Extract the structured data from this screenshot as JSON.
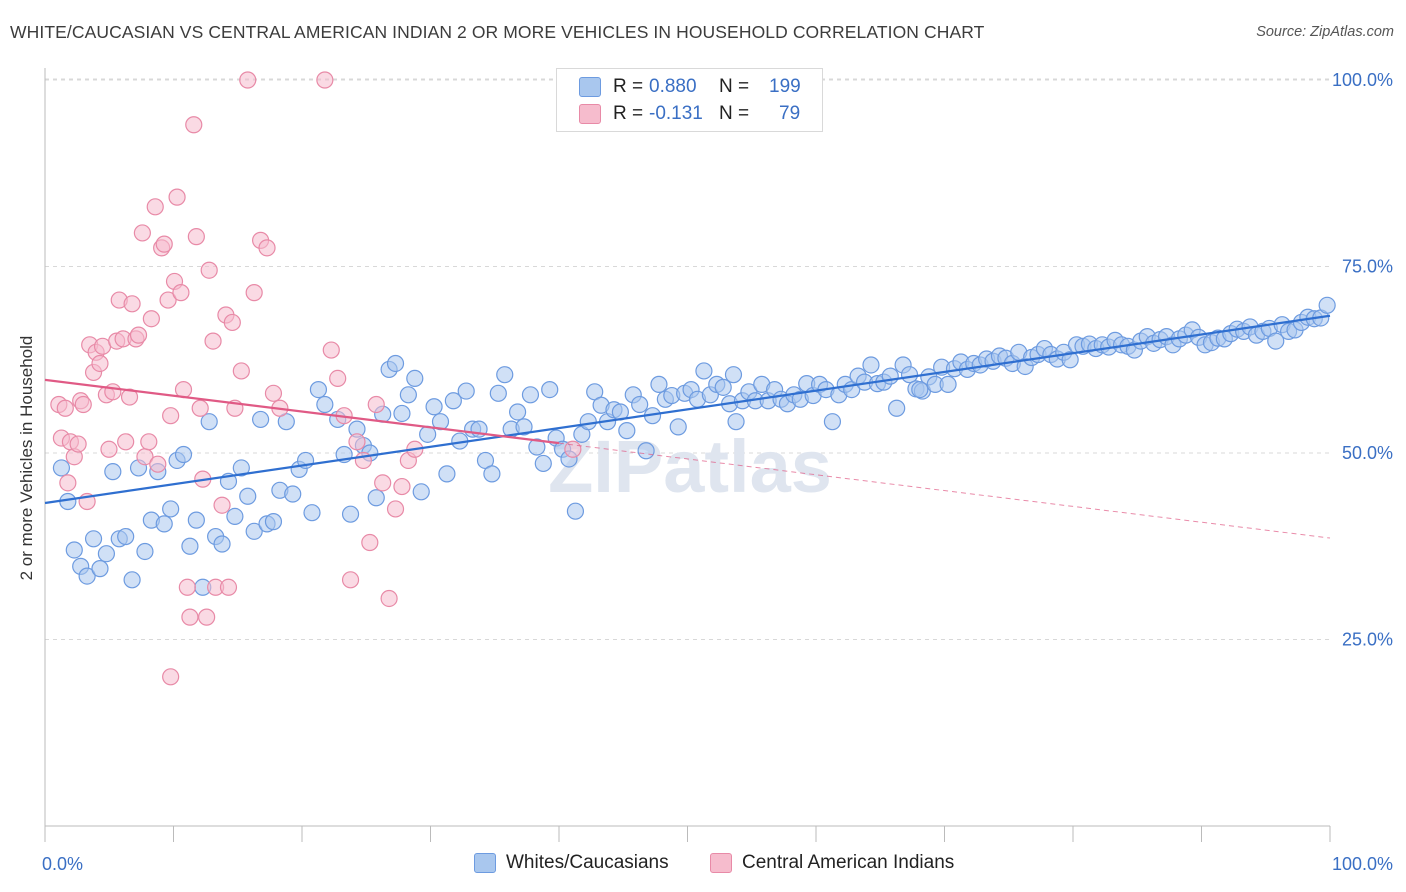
{
  "header": {
    "title": "WHITE/CAUCASIAN VS CENTRAL AMERICAN INDIAN 2 OR MORE VEHICLES IN HOUSEHOLD CORRELATION CHART",
    "source": "Source: ZipAtlas.com"
  },
  "watermark": "ZIPatlas",
  "stats": {
    "rows": [
      {
        "r_label": "R =",
        "r_value": "0.880",
        "n_label": "N =",
        "n_value": "199",
        "color": "#a9c7ee",
        "border": "#6d9be0"
      },
      {
        "r_label": "R =",
        "r_value": "-0.131",
        "n_label": "N =",
        "n_value": "79",
        "color": "#f6bccd",
        "border": "#e88aa7"
      }
    ]
  },
  "legend": {
    "items": [
      {
        "label": "Whites/Caucasians",
        "color": "#a9c7ee",
        "border": "#6d9be0"
      },
      {
        "label": "Central American Indians",
        "color": "#f6bccd",
        "border": "#e88aa7"
      }
    ]
  },
  "chart_data": {
    "type": "scatter",
    "title": "WHITE/CAUCASIAN VS CENTRAL AMERICAN INDIAN 2 OR MORE VEHICLES IN HOUSEHOLD CORRELATION CHART",
    "xlabel": "",
    "ylabel": "2 or more Vehicles in Household",
    "xlim": [
      0,
      100
    ],
    "ylim": [
      0,
      102
    ],
    "x_tick_labels": [
      "0.0%",
      "100.0%"
    ],
    "y_ticks": [
      25,
      50,
      75,
      100
    ],
    "y_tick_labels": [
      "25.0%",
      "50.0%",
      "75.0%",
      "100.0%"
    ],
    "grid": true,
    "legend_position": "bottom",
    "series": [
      {
        "name": "Whites/Caucasians",
        "color": "#6d9be0",
        "fill": "#a9c7ee",
        "trend": {
          "x": [
            0,
            100
          ],
          "y": [
            43.3,
            68.4
          ],
          "color": "#2f6fd0"
        },
        "points": [
          [
            0.5,
            48
          ],
          [
            1,
            43.5
          ],
          [
            1.5,
            37
          ],
          [
            2,
            34.8
          ],
          [
            2.5,
            33.5
          ],
          [
            3,
            38.5
          ],
          [
            3.5,
            34.5
          ],
          [
            4,
            36.5
          ],
          [
            4.5,
            47.5
          ],
          [
            5,
            38.5
          ],
          [
            5.5,
            38.8
          ],
          [
            6,
            33
          ],
          [
            6.5,
            48
          ],
          [
            7,
            36.8
          ],
          [
            7.5,
            41
          ],
          [
            8,
            47.5
          ],
          [
            8.5,
            40.5
          ],
          [
            9,
            42.5
          ],
          [
            9.5,
            49
          ],
          [
            10,
            49.8
          ],
          [
            10.5,
            37.5
          ],
          [
            11,
            41
          ],
          [
            11.5,
            32
          ],
          [
            12,
            54.2
          ],
          [
            12.5,
            38.8
          ],
          [
            13,
            37.8
          ],
          [
            13.5,
            46.2
          ],
          [
            14,
            41.5
          ],
          [
            14.5,
            48
          ],
          [
            15,
            44.2
          ],
          [
            15.5,
            39.5
          ],
          [
            16,
            54.5
          ],
          [
            16.5,
            40.5
          ],
          [
            17,
            40.8
          ],
          [
            17.5,
            45
          ],
          [
            18,
            54.2
          ],
          [
            18.5,
            44.5
          ],
          [
            19,
            47.8
          ],
          [
            19.5,
            49
          ],
          [
            20,
            42
          ],
          [
            20.5,
            58.5
          ],
          [
            21,
            56.5
          ],
          [
            22,
            54.5
          ],
          [
            22.5,
            49.8
          ],
          [
            23,
            41.8
          ],
          [
            23.5,
            53.2
          ],
          [
            24,
            51
          ],
          [
            24.5,
            50
          ],
          [
            25,
            44
          ],
          [
            25.5,
            55.2
          ],
          [
            26,
            61.2
          ],
          [
            26.5,
            62
          ],
          [
            27,
            55.3
          ],
          [
            27.5,
            57.8
          ],
          [
            28,
            60
          ],
          [
            28.5,
            44.8
          ],
          [
            29,
            52.5
          ],
          [
            29.5,
            56.2
          ],
          [
            30,
            54.2
          ],
          [
            30.5,
            47.2
          ],
          [
            31,
            57
          ],
          [
            31.5,
            51.6
          ],
          [
            32,
            58.3
          ],
          [
            32.5,
            53.2
          ],
          [
            33,
            53.2
          ],
          [
            33.5,
            49
          ],
          [
            34,
            47.2
          ],
          [
            34.5,
            58
          ],
          [
            35,
            60.5
          ],
          [
            35.5,
            53.2
          ],
          [
            36,
            55.5
          ],
          [
            36.5,
            53.5
          ],
          [
            37,
            57.8
          ],
          [
            37.5,
            50.8
          ],
          [
            38,
            48.6
          ],
          [
            38.5,
            58.5
          ],
          [
            39,
            52
          ],
          [
            39.5,
            50.5
          ],
          [
            40,
            49.2
          ],
          [
            40.5,
            42.2
          ],
          [
            41,
            52.5
          ],
          [
            41.5,
            54.2
          ],
          [
            42,
            58.2
          ],
          [
            42.5,
            56.4
          ],
          [
            43,
            54.2
          ],
          [
            43.5,
            55.8
          ],
          [
            44,
            55.5
          ],
          [
            44.5,
            53
          ],
          [
            45,
            57.8
          ],
          [
            45.5,
            56.5
          ],
          [
            46,
            50.3
          ],
          [
            46.5,
            55
          ],
          [
            47,
            59.2
          ],
          [
            47.5,
            57.2
          ],
          [
            48,
            57.7
          ],
          [
            48.5,
            53.5
          ],
          [
            49,
            58
          ],
          [
            49.5,
            58.5
          ],
          [
            50,
            57.2
          ],
          [
            50.5,
            61
          ],
          [
            51,
            57.8
          ],
          [
            51.5,
            59.2
          ],
          [
            52,
            58.8
          ],
          [
            52.5,
            56.6
          ],
          [
            53,
            54.2
          ],
          [
            53.5,
            57
          ],
          [
            54,
            58.2
          ],
          [
            54.5,
            57
          ],
          [
            55,
            59.2
          ],
          [
            55.5,
            57
          ],
          [
            56,
            58.5
          ],
          [
            56.5,
            57.2
          ],
          [
            57,
            56.6
          ],
          [
            57.5,
            57.8
          ],
          [
            58,
            57.2
          ],
          [
            58.5,
            59.3
          ],
          [
            59,
            57.7
          ],
          [
            59.5,
            59.2
          ],
          [
            60,
            58.5
          ],
          [
            60.5,
            54.2
          ],
          [
            61,
            57.8
          ],
          [
            61.5,
            59.2
          ],
          [
            62,
            58.5
          ],
          [
            62.5,
            60.3
          ],
          [
            63,
            59.5
          ],
          [
            63.5,
            61.8
          ],
          [
            64,
            59.3
          ],
          [
            64.5,
            59.5
          ],
          [
            65,
            60.3
          ],
          [
            65.5,
            56
          ],
          [
            66,
            61.8
          ],
          [
            66.5,
            60.5
          ],
          [
            67,
            58.6
          ],
          [
            67.5,
            58.3
          ],
          [
            68,
            60.2
          ],
          [
            68.5,
            59.2
          ],
          [
            69,
            61.5
          ],
          [
            69.5,
            59.2
          ],
          [
            70,
            61.3
          ],
          [
            70.5,
            62.2
          ],
          [
            71,
            61.2
          ],
          [
            71.5,
            62
          ],
          [
            72,
            61.8
          ],
          [
            72.5,
            62.6
          ],
          [
            73,
            62.3
          ],
          [
            73.5,
            63
          ],
          [
            74,
            62.7
          ],
          [
            74.5,
            62
          ],
          [
            75,
            63.5
          ],
          [
            75.5,
            61.6
          ],
          [
            76,
            62.8
          ],
          [
            76.5,
            63.2
          ],
          [
            77,
            64
          ],
          [
            77.5,
            63.2
          ],
          [
            78,
            62.6
          ],
          [
            78.5,
            63.5
          ],
          [
            79,
            62.5
          ],
          [
            79.5,
            64.5
          ],
          [
            80,
            64.3
          ],
          [
            80.5,
            64.6
          ],
          [
            81,
            64
          ],
          [
            81.5,
            64.5
          ],
          [
            82,
            64.2
          ],
          [
            82.5,
            65.1
          ],
          [
            83,
            64.5
          ],
          [
            83.5,
            64.3
          ],
          [
            84,
            63.8
          ],
          [
            84.5,
            65
          ],
          [
            85,
            65.6
          ],
          [
            85.5,
            64.7
          ],
          [
            86,
            65.2
          ],
          [
            86.5,
            65.6
          ],
          [
            87,
            64.5
          ],
          [
            87.5,
            65.3
          ],
          [
            88,
            65.8
          ],
          [
            88.5,
            66.5
          ],
          [
            89,
            65.5
          ],
          [
            89.5,
            64.5
          ],
          [
            90,
            64.8
          ],
          [
            90.5,
            65.4
          ],
          [
            91,
            65.3
          ],
          [
            91.5,
            66
          ],
          [
            92,
            66.6
          ],
          [
            92.5,
            66.3
          ],
          [
            93,
            66.9
          ],
          [
            93.5,
            65.8
          ],
          [
            94,
            66.3
          ],
          [
            94.5,
            66.7
          ],
          [
            95,
            65
          ],
          [
            95.5,
            67.2
          ],
          [
            96,
            66.3
          ],
          [
            96.5,
            66.5
          ],
          [
            97,
            67.5
          ],
          [
            97.5,
            68.2
          ],
          [
            98,
            68
          ],
          [
            98.5,
            68.1
          ],
          [
            99,
            69.8
          ],
          [
            67.3,
            58.5
          ],
          [
            52.8,
            60.5
          ]
        ]
      },
      {
        "name": "Central American Indians",
        "color": "#e88aa7",
        "fill": "#f6bccd",
        "trend": {
          "x": [
            0,
            100
          ],
          "y": [
            59.8,
            38.6
          ],
          "color": "#e05a85",
          "solid_until": 40
        },
        "points": [
          [
            0.3,
            56.5
          ],
          [
            0.5,
            52
          ],
          [
            0.8,
            56
          ],
          [
            1,
            46
          ],
          [
            1.2,
            51.5
          ],
          [
            1.5,
            49.5
          ],
          [
            1.8,
            51.2
          ],
          [
            2,
            57
          ],
          [
            2.2,
            56.5
          ],
          [
            2.5,
            43.5
          ],
          [
            2.7,
            64.5
          ],
          [
            3,
            60.8
          ],
          [
            3.2,
            63.5
          ],
          [
            3.5,
            62
          ],
          [
            3.7,
            64.3
          ],
          [
            4,
            57.8
          ],
          [
            4.2,
            50.5
          ],
          [
            4.5,
            58.2
          ],
          [
            4.8,
            65
          ],
          [
            5,
            70.5
          ],
          [
            5.3,
            65.3
          ],
          [
            5.5,
            51.5
          ],
          [
            5.8,
            57.5
          ],
          [
            6,
            70
          ],
          [
            6.3,
            65.3
          ],
          [
            6.5,
            65.8
          ],
          [
            6.8,
            79.5
          ],
          [
            7,
            49.5
          ],
          [
            7.3,
            51.5
          ],
          [
            7.5,
            68
          ],
          [
            7.8,
            83
          ],
          [
            8,
            48.5
          ],
          [
            8.3,
            77.5
          ],
          [
            8.5,
            78
          ],
          [
            8.8,
            70.5
          ],
          [
            9,
            55
          ],
          [
            9.3,
            73
          ],
          [
            9.5,
            84.3
          ],
          [
            9.8,
            71.5
          ],
          [
            10,
            58.5
          ],
          [
            10.3,
            32
          ],
          [
            10.5,
            28
          ],
          [
            10.8,
            94
          ],
          [
            11,
            79
          ],
          [
            11.3,
            56
          ],
          [
            11.5,
            46.5
          ],
          [
            11.8,
            28
          ],
          [
            12,
            74.5
          ],
          [
            12.3,
            65
          ],
          [
            12.5,
            32
          ],
          [
            13,
            43
          ],
          [
            13.3,
            68.5
          ],
          [
            13.5,
            32
          ],
          [
            13.8,
            67.5
          ],
          [
            14,
            56
          ],
          [
            14.5,
            61
          ],
          [
            15,
            100
          ],
          [
            15.5,
            71.5
          ],
          [
            16,
            78.5
          ],
          [
            16.5,
            77.5
          ],
          [
            17,
            58
          ],
          [
            17.5,
            56
          ],
          [
            21,
            100
          ],
          [
            21.5,
            63.8
          ],
          [
            22,
            60
          ],
          [
            22.5,
            55
          ],
          [
            23,
            33
          ],
          [
            23.5,
            51.5
          ],
          [
            24,
            49
          ],
          [
            24.5,
            38
          ],
          [
            25,
            56.5
          ],
          [
            25.5,
            46
          ],
          [
            26,
            30.5
          ],
          [
            26.5,
            42.5
          ],
          [
            27,
            45.5
          ],
          [
            27.5,
            49
          ],
          [
            28,
            50.5
          ],
          [
            9,
            20
          ],
          [
            40.3,
            50.5
          ]
        ]
      }
    ]
  }
}
